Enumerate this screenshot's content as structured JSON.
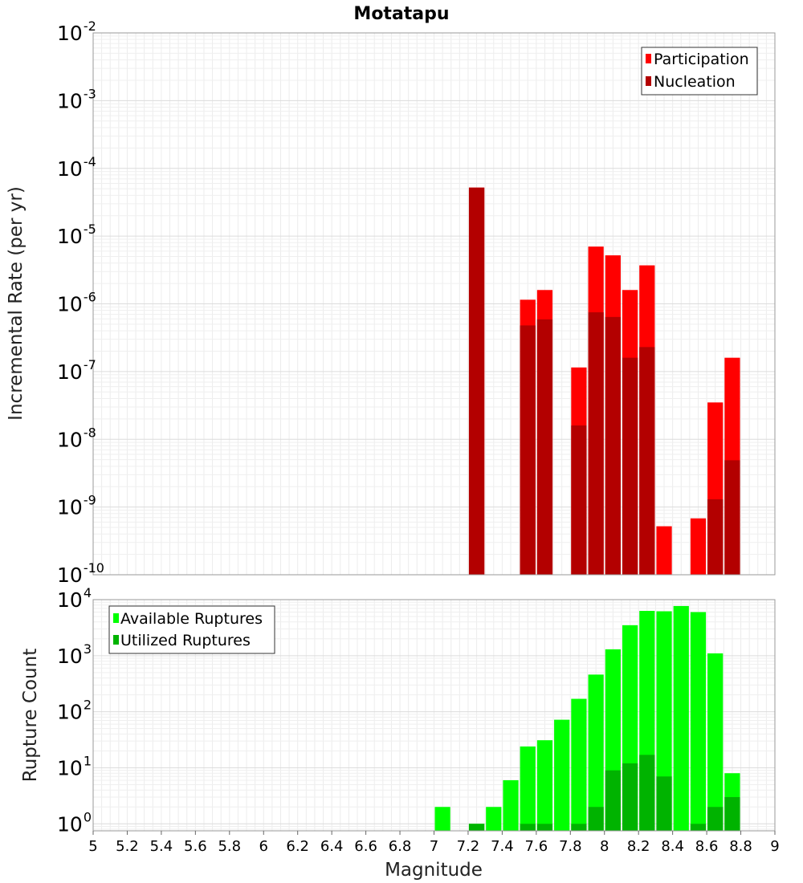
{
  "chart_data": [
    {
      "type": "bar",
      "title": "Motatapu",
      "xlabel": "",
      "ylabel": "Incremental Rate (per yr)",
      "yscale": "log",
      "ylim": [
        1e-10,
        0.01
      ],
      "xlim": [
        5,
        9
      ],
      "y_tick_exponents": [
        -2,
        -3,
        -4,
        -5,
        -6,
        -7,
        -8,
        -9,
        -10
      ],
      "legend": [
        {
          "name": "Participation",
          "color": "#ff0000"
        },
        {
          "name": "Nucleation",
          "color": "#b30000"
        }
      ],
      "series": [
        {
          "name": "Participation",
          "color": "#ff0000",
          "points": [
            {
              "x": 7.25,
              "y": 5.2e-05
            },
            {
              "x": 7.55,
              "y": 1.15e-06
            },
            {
              "x": 7.65,
              "y": 1.6e-06
            },
            {
              "x": 7.85,
              "y": 1.15e-07
            },
            {
              "x": 7.95,
              "y": 7e-06
            },
            {
              "x": 8.05,
              "y": 5.2e-06
            },
            {
              "x": 8.15,
              "y": 1.6e-06
            },
            {
              "x": 8.25,
              "y": 3.7e-06
            },
            {
              "x": 8.35,
              "y": 5.2e-10
            },
            {
              "x": 8.55,
              "y": 6.8e-10
            },
            {
              "x": 8.65,
              "y": 3.5e-08
            },
            {
              "x": 8.75,
              "y": 1.6e-07
            }
          ]
        },
        {
          "name": "Nucleation",
          "color": "#b30000",
          "points": [
            {
              "x": 7.25,
              "y": 5.2e-05
            },
            {
              "x": 7.55,
              "y": 4.8e-07
            },
            {
              "x": 7.65,
              "y": 5.9e-07
            },
            {
              "x": 7.85,
              "y": 1.6e-08
            },
            {
              "x": 7.95,
              "y": 7.5e-07
            },
            {
              "x": 8.05,
              "y": 6.4e-07
            },
            {
              "x": 8.15,
              "y": 1.6e-07
            },
            {
              "x": 8.25,
              "y": 2.3e-07
            },
            {
              "x": 8.65,
              "y": 1.3e-09
            },
            {
              "x": 8.75,
              "y": 4.9e-09
            }
          ]
        }
      ]
    },
    {
      "type": "bar",
      "title": "",
      "xlabel": "Magnitude",
      "ylabel": "Rupture Count",
      "yscale": "log",
      "ylim": [
        0.75,
        10000
      ],
      "xlim": [
        5,
        9
      ],
      "y_tick_exponents": [
        4,
        3,
        2,
        1,
        0
      ],
      "x_ticks": [
        "5",
        "5.2",
        "5.4",
        "5.6",
        "5.8",
        "6",
        "6.2",
        "6.4",
        "6.6",
        "6.8",
        "7",
        "7.2",
        "7.4",
        "7.6",
        "7.8",
        "8",
        "8.2",
        "8.4",
        "8.6",
        "8.8",
        "9"
      ],
      "legend": [
        {
          "name": "Available Ruptures",
          "color": "#00ff00"
        },
        {
          "name": "Utilized Ruptures",
          "color": "#00b300"
        }
      ],
      "series": [
        {
          "name": "Available Ruptures",
          "color": "#00ff00",
          "points": [
            {
              "x": 7.05,
              "y": 2
            },
            {
              "x": 7.25,
              "y": 1
            },
            {
              "x": 7.35,
              "y": 2
            },
            {
              "x": 7.45,
              "y": 6
            },
            {
              "x": 7.55,
              "y": 24
            },
            {
              "x": 7.65,
              "y": 31
            },
            {
              "x": 7.75,
              "y": 72
            },
            {
              "x": 7.85,
              "y": 170
            },
            {
              "x": 7.95,
              "y": 460
            },
            {
              "x": 8.05,
              "y": 1300
            },
            {
              "x": 8.15,
              "y": 3500
            },
            {
              "x": 8.25,
              "y": 6300
            },
            {
              "x": 8.35,
              "y": 6200
            },
            {
              "x": 8.45,
              "y": 7700
            },
            {
              "x": 8.55,
              "y": 6000
            },
            {
              "x": 8.65,
              "y": 1100
            },
            {
              "x": 8.75,
              "y": 8
            }
          ]
        },
        {
          "name": "Utilized Ruptures",
          "color": "#00b300",
          "points": [
            {
              "x": 7.25,
              "y": 1
            },
            {
              "x": 7.55,
              "y": 1
            },
            {
              "x": 7.65,
              "y": 1
            },
            {
              "x": 7.85,
              "y": 1
            },
            {
              "x": 7.95,
              "y": 2
            },
            {
              "x": 8.05,
              "y": 9
            },
            {
              "x": 8.15,
              "y": 12
            },
            {
              "x": 8.25,
              "y": 17
            },
            {
              "x": 8.35,
              "y": 7
            },
            {
              "x": 8.55,
              "y": 1
            },
            {
              "x": 8.65,
              "y": 2
            },
            {
              "x": 8.75,
              "y": 3
            }
          ]
        }
      ]
    }
  ]
}
